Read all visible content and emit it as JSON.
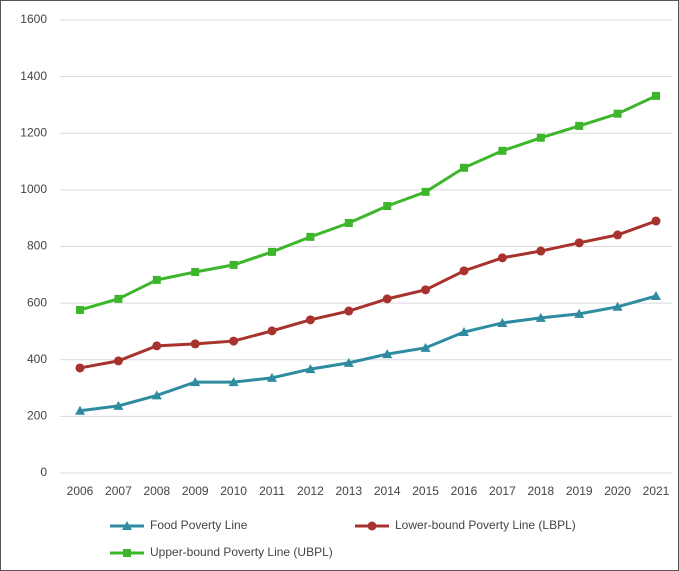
{
  "chart_data": {
    "type": "line",
    "categories": [
      "2006",
      "2007",
      "2008",
      "2009",
      "2010",
      "2011",
      "2012",
      "2013",
      "2014",
      "2015",
      "2016",
      "2017",
      "2018",
      "2019",
      "2020",
      "2021"
    ],
    "series": [
      {
        "name": "Food Poverty Line",
        "color": "#2e8ba0",
        "marker": "triangle",
        "values": [
          220,
          237,
          274,
          321,
          321,
          336,
          367,
          389,
          420,
          442,
          498,
          530,
          548,
          562,
          587,
          625
        ]
      },
      {
        "name": "Lower-bound Poverty Line (LBPL)",
        "color": "#a8322d",
        "marker": "circle",
        "values": [
          371,
          396,
          449,
          456,
          466,
          502,
          541,
          572,
          615,
          647,
          714,
          760,
          784,
          813,
          841,
          890
        ]
      },
      {
        "name": "Upper-bound Poverty Line (UBPL)",
        "color": "#3db62b",
        "marker": "square",
        "values": [
          576,
          615,
          682,
          710,
          735,
          781,
          834,
          883,
          943,
          993,
          1078,
          1138,
          1184,
          1226,
          1269,
          1332
        ]
      }
    ],
    "ylim": [
      0,
      1600
    ],
    "yticks": [
      0,
      200,
      400,
      600,
      800,
      1000,
      1200,
      1400,
      1600
    ],
    "grid": true
  }
}
